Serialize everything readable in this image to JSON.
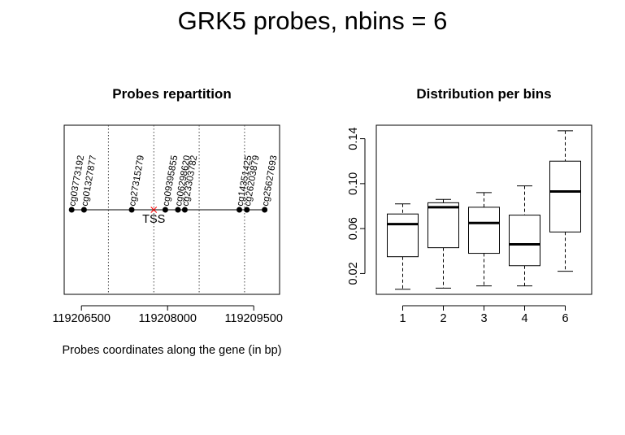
{
  "title": "GRK5 probes, nbins = 6",
  "chart_data": [
    {
      "type": "scatter",
      "title": "Probes repartition",
      "xlabel": "Probes coordinates along the gene (in bp)",
      "ylabel": "",
      "xlim": [
        119206200,
        119209950
      ],
      "x_ticks": [
        119206500,
        119208000,
        119209500
      ],
      "x_tick_labels": [
        "119206500",
        "119208000",
        "119209500"
      ],
      "bin_boundaries": [
        119206970,
        119207760,
        119208550,
        119209340
      ],
      "tss": {
        "x": 119207760,
        "label": "TSS",
        "color": "#ff0000"
      },
      "probes": [
        {
          "name": "cg03773192",
          "x": 119206330
        },
        {
          "name": "cg01327877",
          "x": 119206545
        },
        {
          "name": "cg27315279",
          "x": 119207375
        },
        {
          "name": "cg09395855",
          "x": 119207960
        },
        {
          "name": "cg06298620",
          "x": 119208180
        },
        {
          "name": "cg23303782",
          "x": 119208300
        },
        {
          "name": "cg14351425",
          "x": 119209250
        },
        {
          "name": "cg26203879",
          "x": 119209380
        },
        {
          "name": "cg25627693",
          "x": 119209690
        }
      ],
      "grid": false
    },
    {
      "type": "boxplot",
      "title": "Distribution per bins",
      "xlabel": "",
      "ylabel": "",
      "categories": [
        "1",
        "2",
        "3",
        "4",
        "6"
      ],
      "y_ticks": [
        0.02,
        0.06,
        0.1,
        0.14
      ],
      "y_tick_labels": [
        "0.02",
        "0.06",
        "0.10",
        "0.14"
      ],
      "ylim": [
        0.0015,
        0.152
      ],
      "boxes": [
        {
          "label": "1",
          "lower_whisker": 0.006,
          "q1": 0.035,
          "median": 0.064,
          "q3": 0.073,
          "upper_whisker": 0.082
        },
        {
          "label": "2",
          "lower_whisker": 0.007,
          "q1": 0.043,
          "median": 0.079,
          "q3": 0.083,
          "upper_whisker": 0.086
        },
        {
          "label": "3",
          "lower_whisker": 0.009,
          "q1": 0.038,
          "median": 0.065,
          "q3": 0.079,
          "upper_whisker": 0.092
        },
        {
          "label": "4",
          "lower_whisker": 0.009,
          "q1": 0.027,
          "median": 0.046,
          "q3": 0.072,
          "upper_whisker": 0.098
        },
        {
          "label": "6",
          "lower_whisker": 0.022,
          "q1": 0.057,
          "median": 0.093,
          "q3": 0.12,
          "upper_whisker": 0.147
        }
      ],
      "grid": false
    }
  ]
}
